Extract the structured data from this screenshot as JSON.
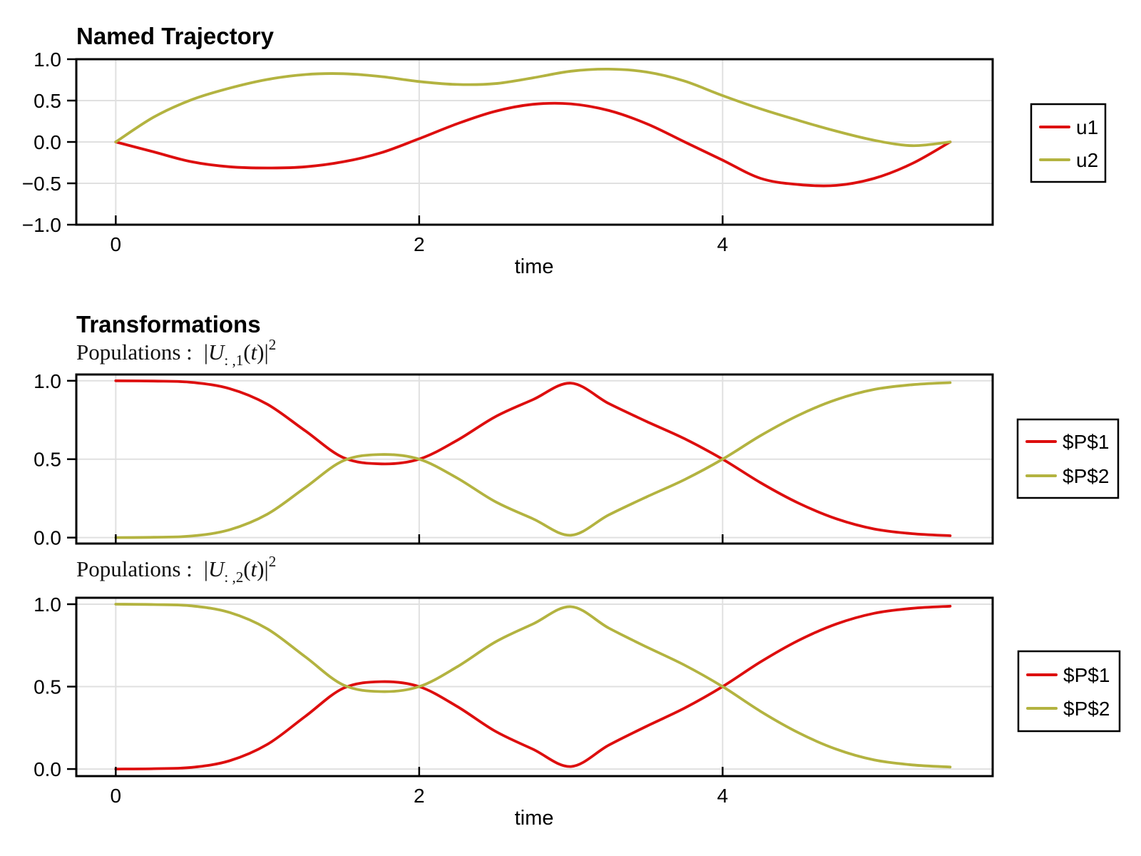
{
  "figure": {
    "background": "#ffffff",
    "frame_color": "#000000",
    "grid_color": "#e0e0e0",
    "tick_color": "#000000",
    "series_colors": {
      "red": "#dd0e0e",
      "olive": "#b3b340"
    }
  },
  "chart_data": [
    {
      "type": "line",
      "title": "Named Trajectory",
      "xlabel": "time",
      "x_ticks": {
        "values": [
          0,
          2,
          4
        ],
        "labels": [
          "0",
          "2",
          "4"
        ]
      },
      "y_ticks": {
        "values": [
          1.0,
          0.5,
          0.0,
          -0.5,
          -1.0
        ],
        "labels": [
          "1.0",
          "0.5",
          "0.0",
          "−0.5",
          "−1.0"
        ]
      },
      "xlim": [
        -0.26,
        5.78
      ],
      "ylim": [
        -1.0,
        1.0
      ],
      "grid": true,
      "legend_position": "outer-right",
      "x": [
        0,
        0.25,
        0.5,
        0.75,
        1,
        1.25,
        1.5,
        1.75,
        2,
        2.25,
        2.5,
        2.75,
        3,
        3.25,
        3.5,
        3.75,
        4,
        4.25,
        4.5,
        4.75,
        5,
        5.25,
        5.5
      ],
      "series": [
        {
          "name": "u1",
          "color": "#dd0e0e",
          "values": [
            0,
            -0.12,
            -0.24,
            -0.3,
            -0.315,
            -0.3,
            -0.24,
            -0.13,
            0.04,
            0.22,
            0.37,
            0.455,
            0.46,
            0.38,
            0.22,
            0.0,
            -0.22,
            -0.44,
            -0.515,
            -0.525,
            -0.44,
            -0.26,
            0
          ]
        },
        {
          "name": "u2",
          "color": "#b3b340",
          "values": [
            0,
            0.3,
            0.51,
            0.65,
            0.755,
            0.815,
            0.825,
            0.79,
            0.73,
            0.695,
            0.705,
            0.775,
            0.855,
            0.88,
            0.845,
            0.735,
            0.56,
            0.4,
            0.26,
            0.13,
            0.02,
            -0.045,
            0
          ]
        }
      ],
      "legend": {
        "entries": [
          "u1",
          "u2"
        ]
      }
    },
    {
      "type": "line",
      "title": "Transformations",
      "subtitle_parts": {
        "prefix": "Populations :",
        "bar_open": "|",
        "symbol": "U",
        "subscript": ": ,1",
        "mid": "(",
        "var": "t",
        "close": ")|",
        "exponent": "2"
      },
      "xlabel": "",
      "x_ticks": {
        "values": [
          0,
          2,
          4
        ],
        "labels": []
      },
      "y_ticks": {
        "values": [
          1.0,
          0.5,
          0.0
        ],
        "labels": [
          "1.0",
          "0.5",
          "0.0"
        ]
      },
      "xlim": [
        -0.26,
        5.78
      ],
      "ylim": [
        -0.038,
        1.04
      ],
      "grid": true,
      "legend_position": "outer-right",
      "x": [
        0,
        0.25,
        0.5,
        0.75,
        1,
        1.25,
        1.5,
        1.75,
        2,
        2.25,
        2.5,
        2.75,
        3,
        3.25,
        3.5,
        3.75,
        4,
        4.25,
        4.5,
        4.75,
        5,
        5.25,
        5.5
      ],
      "series": [
        {
          "name": "$P$1",
          "color": "#dd0e0e",
          "values": [
            1.0,
            0.998,
            0.99,
            0.95,
            0.85,
            0.68,
            0.51,
            0.47,
            0.5,
            0.62,
            0.77,
            0.88,
            0.985,
            0.855,
            0.74,
            0.63,
            0.5,
            0.35,
            0.22,
            0.12,
            0.055,
            0.025,
            0.012
          ]
        },
        {
          "name": "$P$2",
          "color": "#b3b340",
          "values": [
            0.0,
            0.002,
            0.01,
            0.05,
            0.15,
            0.32,
            0.49,
            0.53,
            0.5,
            0.38,
            0.23,
            0.12,
            0.015,
            0.145,
            0.26,
            0.37,
            0.5,
            0.65,
            0.78,
            0.88,
            0.945,
            0.975,
            0.988
          ]
        }
      ],
      "legend": {
        "entries": [
          "$P$1",
          "$P$2"
        ]
      }
    },
    {
      "type": "line",
      "title": "",
      "subtitle_parts": {
        "prefix": "Populations :",
        "bar_open": "|",
        "symbol": "U",
        "subscript": ": ,2",
        "mid": "(",
        "var": "t",
        "close": ")|",
        "exponent": "2"
      },
      "xlabel": "time",
      "x_ticks": {
        "values": [
          0,
          2,
          4
        ],
        "labels": [
          "0",
          "2",
          "4"
        ]
      },
      "y_ticks": {
        "values": [
          1.0,
          0.5,
          0.0
        ],
        "labels": [
          "1.0",
          "0.5",
          "0.0"
        ]
      },
      "xlim": [
        -0.26,
        5.78
      ],
      "ylim": [
        -0.043,
        1.039
      ],
      "grid": true,
      "legend_position": "outer-right",
      "x": [
        0,
        0.25,
        0.5,
        0.75,
        1,
        1.25,
        1.5,
        1.75,
        2,
        2.25,
        2.5,
        2.75,
        3,
        3.25,
        3.5,
        3.75,
        4,
        4.25,
        4.5,
        4.75,
        5,
        5.25,
        5.5
      ],
      "series": [
        {
          "name": "$P$1",
          "color": "#dd0e0e",
          "values": [
            0.0,
            0.002,
            0.01,
            0.05,
            0.15,
            0.32,
            0.49,
            0.53,
            0.5,
            0.38,
            0.23,
            0.12,
            0.015,
            0.145,
            0.26,
            0.37,
            0.5,
            0.65,
            0.78,
            0.88,
            0.945,
            0.975,
            0.988
          ]
        },
        {
          "name": "$P$2",
          "color": "#b3b340",
          "values": [
            1.0,
            0.998,
            0.99,
            0.95,
            0.85,
            0.68,
            0.51,
            0.47,
            0.5,
            0.62,
            0.77,
            0.88,
            0.985,
            0.855,
            0.74,
            0.63,
            0.5,
            0.35,
            0.22,
            0.12,
            0.055,
            0.025,
            0.012
          ]
        }
      ],
      "legend": {
        "entries": [
          "$P$1",
          "$P$2"
        ]
      }
    }
  ]
}
